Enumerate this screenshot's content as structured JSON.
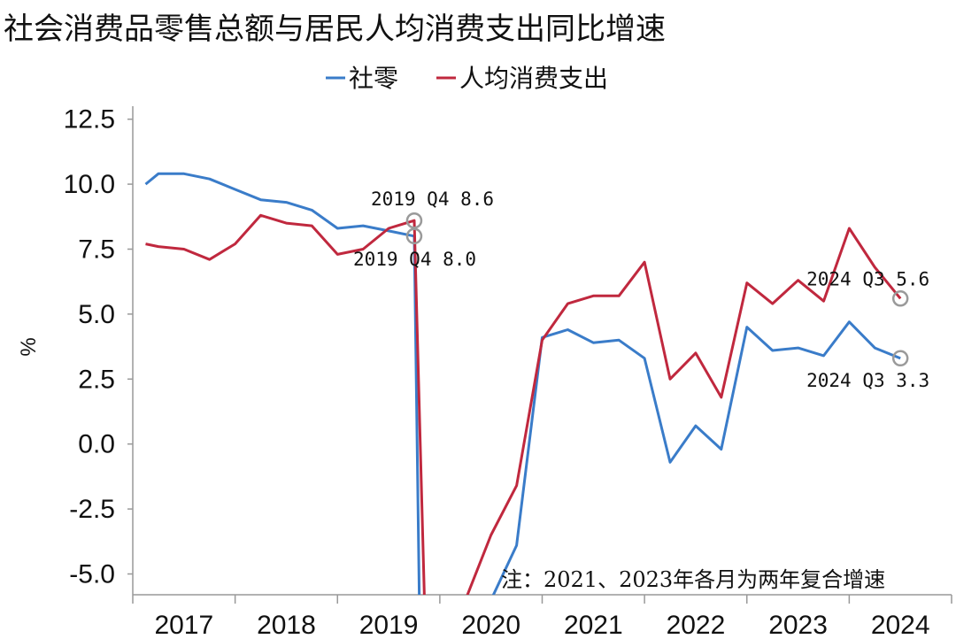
{
  "chart_data": {
    "type": "line",
    "title": "社会消费品零售总额与居民人均消费支出同比增速",
    "ylabel": "%",
    "ylim": [
      -5.8,
      13.0
    ],
    "yticks": [
      12.5,
      10.0,
      7.5,
      5.0,
      2.5,
      0.0,
      -2.5,
      -5.0
    ],
    "ytick_labels": [
      "12.5",
      "10.0",
      "7.5",
      "5.0",
      "2.5",
      "0.0",
      "-2.5",
      "-5.0"
    ],
    "xlim": [
      2017.0,
      2025.0
    ],
    "x_tick_labels": [
      "2017",
      "2018",
      "2019",
      "2020",
      "2021",
      "2022",
      "2023",
      "2024"
    ],
    "legend_placement": "top-center",
    "grid": false,
    "series": [
      {
        "name": "社零",
        "color": "#3a7cc9",
        "points": [
          [
            2017.125,
            10.0
          ],
          [
            2017.25,
            10.4
          ],
          [
            2017.5,
            10.4
          ],
          [
            2017.75,
            10.2
          ],
          [
            2018.0,
            9.8
          ],
          [
            2018.25,
            9.4
          ],
          [
            2018.5,
            9.3
          ],
          [
            2018.75,
            9.0
          ],
          [
            2019.0,
            8.3
          ],
          [
            2019.25,
            8.4
          ],
          [
            2019.5,
            8.2
          ],
          [
            2019.75,
            8.0
          ],
          [
            2019.8,
            -6.0
          ],
          [
            2020.5,
            -6.0
          ],
          [
            2020.75,
            -3.9
          ],
          [
            2021.0,
            4.1
          ],
          [
            2021.25,
            4.4
          ],
          [
            2021.5,
            3.9
          ],
          [
            2021.75,
            4.0
          ],
          [
            2022.0,
            3.3
          ],
          [
            2022.25,
            -0.7
          ],
          [
            2022.5,
            0.7
          ],
          [
            2022.75,
            -0.2
          ],
          [
            2023.0,
            4.5
          ],
          [
            2023.25,
            3.6
          ],
          [
            2023.5,
            3.7
          ],
          [
            2023.75,
            3.4
          ],
          [
            2024.0,
            4.7
          ],
          [
            2024.25,
            3.7
          ],
          [
            2024.5,
            3.3
          ]
        ]
      },
      {
        "name": "人均消费支出",
        "color": "#c0283e",
        "points": [
          [
            2017.125,
            7.7
          ],
          [
            2017.25,
            7.6
          ],
          [
            2017.5,
            7.5
          ],
          [
            2017.75,
            7.1
          ],
          [
            2018.0,
            7.7
          ],
          [
            2018.25,
            8.8
          ],
          [
            2018.5,
            8.5
          ],
          [
            2018.75,
            8.4
          ],
          [
            2019.0,
            7.3
          ],
          [
            2019.25,
            7.5
          ],
          [
            2019.5,
            8.3
          ],
          [
            2019.75,
            8.6
          ],
          [
            2019.85,
            -6.0
          ],
          [
            2020.25,
            -6.0
          ],
          [
            2020.5,
            -3.5
          ],
          [
            2020.75,
            -1.6
          ],
          [
            2021.0,
            4.0
          ],
          [
            2021.25,
            5.4
          ],
          [
            2021.5,
            5.7
          ],
          [
            2021.75,
            5.7
          ],
          [
            2022.0,
            7.0
          ],
          [
            2022.25,
            2.5
          ],
          [
            2022.5,
            3.5
          ],
          [
            2022.75,
            1.8
          ],
          [
            2023.0,
            6.2
          ],
          [
            2023.25,
            5.4
          ],
          [
            2023.5,
            6.3
          ],
          [
            2023.75,
            5.5
          ],
          [
            2024.0,
            8.3
          ],
          [
            2024.25,
            6.8
          ],
          [
            2024.5,
            5.6
          ]
        ]
      }
    ],
    "annotations": [
      {
        "id": "a1",
        "text": "2019 Q4 8.6",
        "x": 2019.75,
        "y": 8.6
      },
      {
        "id": "a2",
        "text": "2019 Q4 8.0",
        "x": 2019.75,
        "y": 8.0
      },
      {
        "id": "a3",
        "text": "2024 Q3 5.6",
        "x": 2024.5,
        "y": 5.6
      },
      {
        "id": "a4",
        "text": "2024 Q3 3.3",
        "x": 2024.5,
        "y": 3.3
      }
    ],
    "note": "注：2021、2023年各月为两年复合增速"
  }
}
